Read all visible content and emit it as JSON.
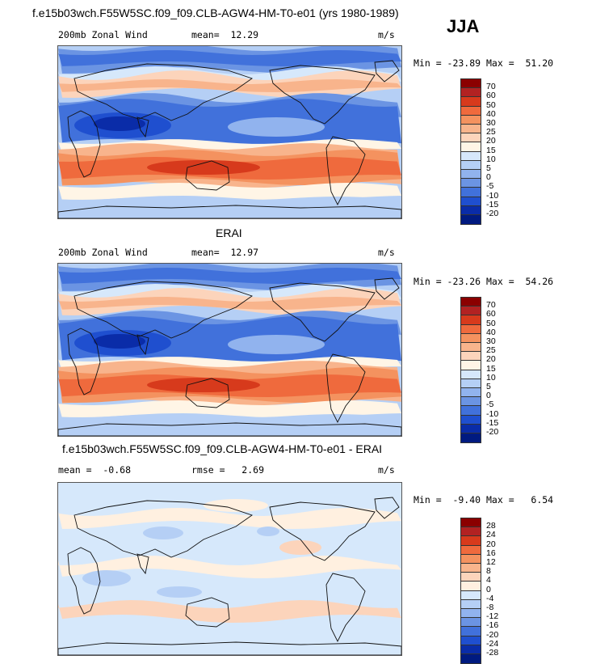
{
  "header": {
    "title": "f.e15b03wch.F55W5SC.f09_f09.CLB-AGW4-HM-T0-e01 (yrs 1980-1989)",
    "season": "JJA"
  },
  "panels": [
    {
      "id": "model",
      "title": "",
      "left_label": "200mb Zonal Wind",
      "middle_label": "mean=  12.29",
      "units": "m/s",
      "minmax": "Min = -23.89 Max =  51.20",
      "colorbar_labels": [
        "70",
        "60",
        "50",
        "40",
        "30",
        "25",
        "20",
        "15",
        "10",
        "5",
        "0",
        "-5",
        "-10",
        "-15",
        "-20"
      ],
      "colors": [
        "#8b0000",
        "#b22222",
        "#d73a1c",
        "#ef6a3d",
        "#f4925f",
        "#f8b48c",
        "#fcd4bb",
        "#fff5e6",
        "#d6e8fb",
        "#b5cff5",
        "#91b3ee",
        "#6b94e3",
        "#4171db",
        "#1f4fcf",
        "#0a2ca8",
        "#001a80"
      ]
    },
    {
      "id": "obs",
      "title": "ERAI",
      "left_label": "200mb Zonal Wind",
      "middle_label": "mean=  12.97",
      "units": "m/s",
      "minmax": "Min = -23.26 Max =  54.26",
      "colorbar_labels": [
        "70",
        "60",
        "50",
        "40",
        "30",
        "25",
        "20",
        "15",
        "10",
        "5",
        "0",
        "-5",
        "-10",
        "-15",
        "-20"
      ],
      "colors": [
        "#8b0000",
        "#b22222",
        "#d73a1c",
        "#ef6a3d",
        "#f4925f",
        "#f8b48c",
        "#fcd4bb",
        "#fff5e6",
        "#d6e8fb",
        "#b5cff5",
        "#91b3ee",
        "#6b94e3",
        "#4171db",
        "#1f4fcf",
        "#0a2ca8",
        "#001a80"
      ]
    },
    {
      "id": "diff",
      "title": "f.e15b03wch.F55W5SC.f09_f09.CLB-AGW4-HM-T0-e01 - ERAI",
      "left_label": "mean =  -0.68",
      "middle_label": "rmse =   2.69",
      "units": "m/s",
      "minmax": "Min =  -9.40 Max =   6.54",
      "colorbar_labels": [
        "28",
        "24",
        "20",
        "16",
        "12",
        "8",
        "4",
        "0",
        "-4",
        "-8",
        "-12",
        "-16",
        "-20",
        "-24",
        "-28"
      ],
      "colors": [
        "#8b0000",
        "#b22222",
        "#d73a1c",
        "#ef6a3d",
        "#f4925f",
        "#f8b48c",
        "#fcd4bb",
        "#fff0e0",
        "#d6e8fb",
        "#b5cff5",
        "#91b3ee",
        "#6b94e3",
        "#4171db",
        "#1f4fcf",
        "#0a2ca8",
        "#001a80"
      ]
    }
  ]
}
